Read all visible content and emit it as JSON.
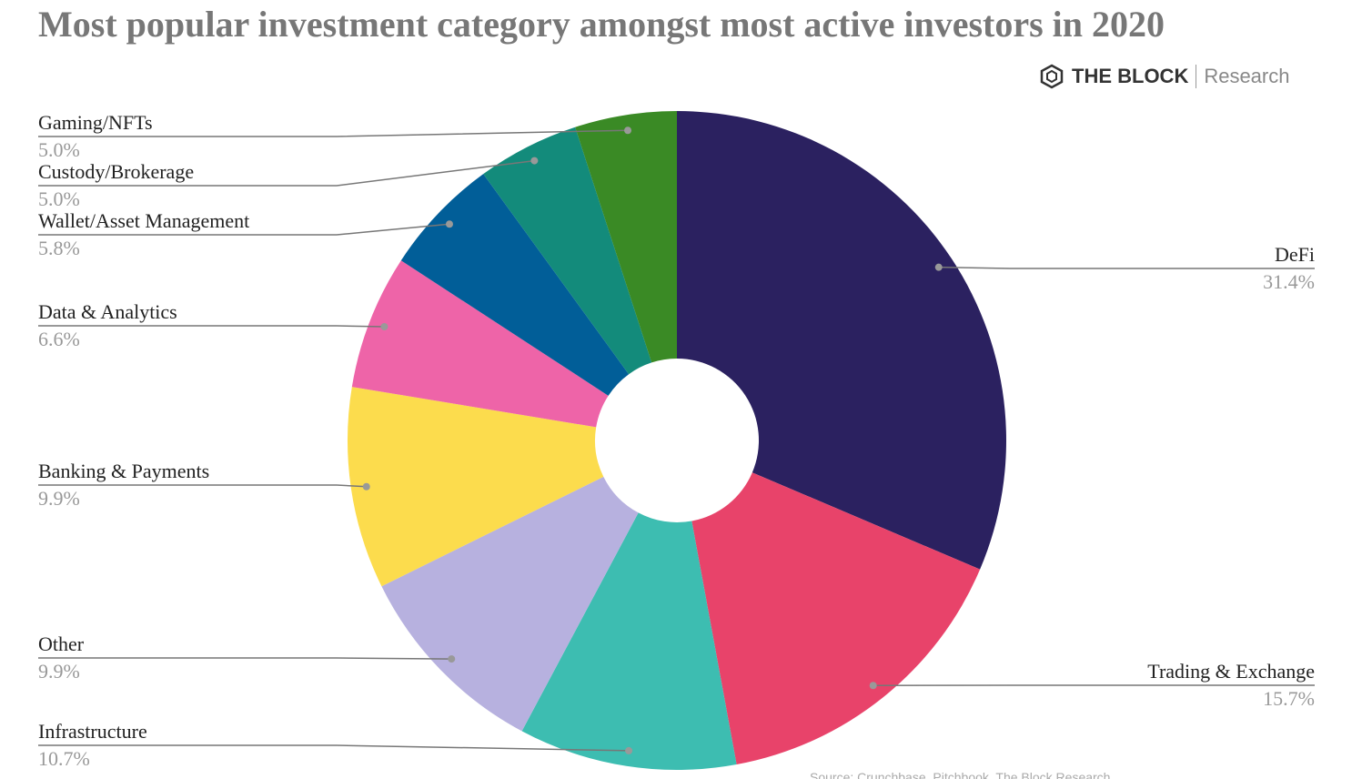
{
  "chart_data": {
    "type": "donut",
    "title": "Most popular investment category amongst most active investors in 2020",
    "brand": "THE BLOCK",
    "brand_sub": "Research",
    "source": "Source: Crunchbase, Pitchbook, The Block Research",
    "categories": [
      "DeFi",
      "Trading & Exchange",
      "Infrastructure",
      "Other",
      "Banking & Payments",
      "Data & Analytics",
      "Wallet/Asset Management",
      "Custody/Brokerage",
      "Gaming/NFTs"
    ],
    "values": [
      31.4,
      15.7,
      10.7,
      9.9,
      9.9,
      6.6,
      5.8,
      5.0,
      5.0
    ],
    "value_labels": [
      "31.4%",
      "15.7%",
      "10.7%",
      "9.9%",
      "9.9%",
      "6.6%",
      "5.8%",
      "5.0%",
      "5.0%"
    ],
    "colors": [
      "#2b2160",
      "#e8436a",
      "#3dbdb1",
      "#b7b1df",
      "#fcdc4d",
      "#ee64a8",
      "#015e98",
      "#138b7b",
      "#3a8a25"
    ]
  }
}
